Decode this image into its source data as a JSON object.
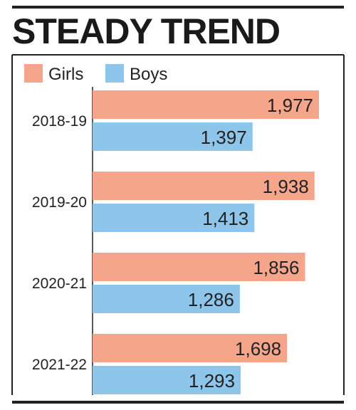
{
  "chart_data": {
    "type": "bar",
    "orientation": "horizontal",
    "title": "STEADY TREND",
    "categories": [
      "2018-19",
      "2019-20",
      "2020-21",
      "2021-22"
    ],
    "series": [
      {
        "name": "Girls",
        "values": [
          1977,
          1938,
          1856,
          1698
        ],
        "color": "#f4a58a"
      },
      {
        "name": "Boys",
        "values": [
          1397,
          1413,
          1286,
          1293
        ],
        "color": "#8ec5ea"
      }
    ],
    "value_labels": {
      "Girls": [
        "1,977",
        "1,938",
        "1,856",
        "1,698"
      ],
      "Boys": [
        "1,397",
        "1,413",
        "1,286",
        "1,293"
      ]
    },
    "xlabel": "",
    "ylabel": "",
    "xlim": [
      0,
      1977
    ],
    "grid": false,
    "legend_placement": "top-left"
  }
}
